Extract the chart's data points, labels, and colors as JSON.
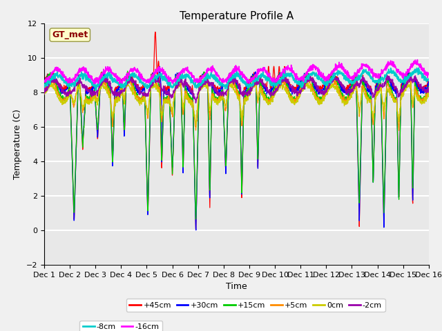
{
  "title": "Temperature Profile A",
  "xlabel": "Time",
  "ylabel": "Temperature (C)",
  "ylim": [
    -2,
    12
  ],
  "xlim": [
    0,
    360
  ],
  "x_tick_labels": [
    "Dec 1",
    "Dec 2",
    "Dec 3",
    "Dec 4",
    "Dec 5",
    "Dec 6",
    "Dec 7",
    "Dec 8",
    "Dec 9",
    "Dec 10",
    "Dec 11",
    "Dec 12",
    "Dec 13",
    "Dec 14",
    "Dec 15",
    "Dec 16"
  ],
  "annotation_text": "GT_met",
  "annotation_color": "#8B0000",
  "annotation_bg": "#FFFFCC",
  "series_colors": {
    "+45cm": "#FF0000",
    "+30cm": "#0000FF",
    "+15cm": "#00CC00",
    "+5cm": "#FF8C00",
    "0cm": "#CCCC00",
    "-2cm": "#9900AA",
    "-8cm": "#00CCCC",
    "-16cm": "#FF00FF"
  },
  "background_color": "#E8E8E8",
  "grid_color": "#FFFFFF",
  "title_fontsize": 11,
  "label_fontsize": 9,
  "tick_fontsize": 8,
  "figsize": [
    6.4,
    4.8
  ],
  "dpi": 100
}
